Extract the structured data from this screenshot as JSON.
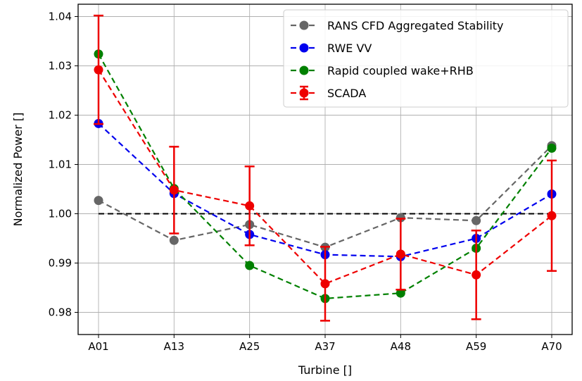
{
  "chart_data": {
    "type": "line",
    "title": "",
    "xlabel": "Turbine []",
    "ylabel": "Normalized Power []",
    "categories": [
      "A01",
      "A13",
      "A25",
      "A37",
      "A48",
      "A59",
      "A70"
    ],
    "ylim": [
      0.9755,
      1.0425
    ],
    "yticks": [
      "0.98",
      "0.99",
      "1.00",
      "1.01",
      "1.02",
      "1.03",
      "1.04"
    ],
    "ytick_values": [
      0.98,
      0.99,
      1.0,
      1.01,
      1.02,
      1.03,
      1.04
    ],
    "grid": true,
    "legend_position": "top-right",
    "reference_line": {
      "y": 1.0,
      "color": "#000000",
      "style": "dashed"
    },
    "series": [
      {
        "name": "RANS CFD Aggregated Stability",
        "color": "#666666",
        "values": [
          1.0027,
          0.9946,
          0.9978,
          0.9932,
          0.9992,
          0.9986,
          1.0138
        ]
      },
      {
        "name": "RWE VV",
        "color": "#0000ee",
        "values": [
          1.0183,
          1.0041,
          0.9958,
          0.9917,
          0.9913,
          0.995,
          1.004
        ]
      },
      {
        "name": "Rapid coupled wake+RHB",
        "color": "#008000",
        "values": [
          1.0324,
          1.0051,
          0.9895,
          0.9828,
          0.9839,
          0.993,
          1.0133
        ]
      },
      {
        "name": "SCADA",
        "color": "#ee0000",
        "values": [
          1.0292,
          1.0048,
          1.0016,
          0.9858,
          0.9918,
          0.9876,
          0.9996
        ],
        "error": [
          0.011,
          0.0088,
          0.008,
          0.0075,
          0.0072,
          0.009,
          0.0112
        ]
      }
    ]
  }
}
